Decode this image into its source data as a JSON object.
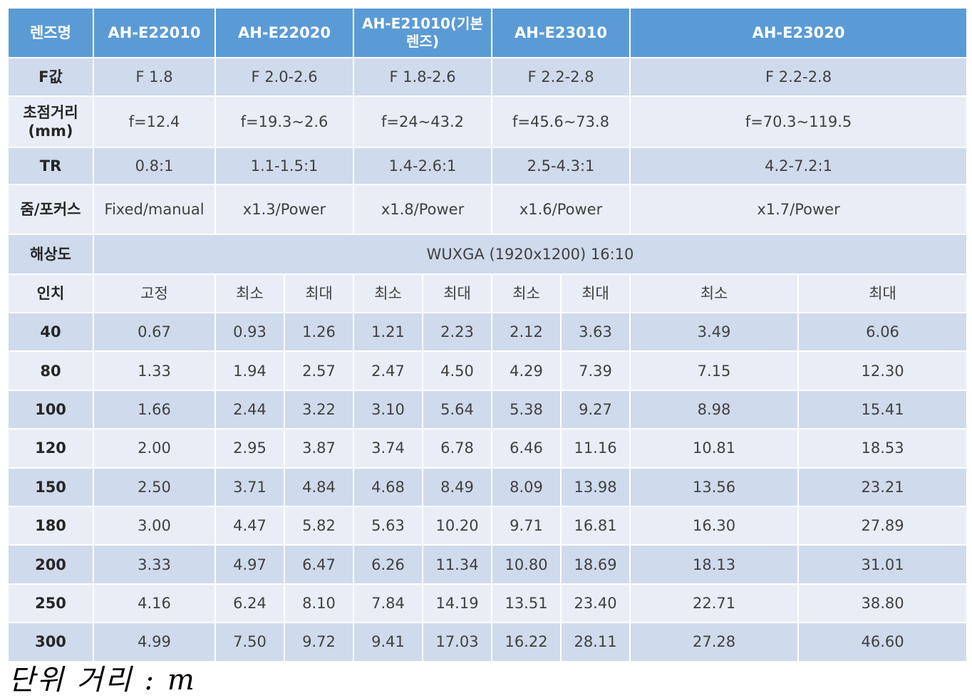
{
  "table": {
    "header": {
      "label": "렌즈명",
      "models": [
        "AH-E22010",
        "AH-E22020",
        "AH-E21010(기본렌즈)",
        "AH-E23010",
        "AH-E23020"
      ]
    },
    "specs": [
      {
        "label": "F값",
        "values": [
          "F 1.8",
          "F 2.0-2.6",
          "F 1.8-2.6",
          "F 2.2-2.8",
          "F 2.2-2.8"
        ]
      },
      {
        "label": "초점거리(mm)",
        "values": [
          "f=12.4",
          "f=19.3~2.6",
          "f=24~43.2",
          "f=45.6~73.8",
          "f=70.3~119.5"
        ]
      },
      {
        "label": "TR",
        "values": [
          "0.8:1",
          "1.1-1.5:1",
          "1.4-2.6:1",
          "2.5-4.3:1",
          "4.2-7.2:1"
        ]
      },
      {
        "label": "줌/포커스",
        "values": [
          "Fixed/manual",
          "x1.3/Power",
          "x1.8/Power",
          "x1.6/Power",
          "x1.7/Power"
        ]
      }
    ],
    "resolution": {
      "label": "해상도",
      "value": "WUXGA (1920x1200) 16:10"
    },
    "subheader": {
      "label": "인치",
      "cols": [
        "고정",
        "최소",
        "최대",
        "최소",
        "최대",
        "최소",
        "최대",
        "최소",
        "최대"
      ]
    },
    "distance_rows": [
      {
        "inch": "40",
        "values": [
          "0.67",
          "0.93",
          "1.26",
          "1.21",
          "2.23",
          "2.12",
          "3.63",
          "3.49",
          "6.06"
        ]
      },
      {
        "inch": "80",
        "values": [
          "1.33",
          "1.94",
          "2.57",
          "2.47",
          "4.50",
          "4.29",
          "7.39",
          "7.15",
          "12.30"
        ]
      },
      {
        "inch": "100",
        "values": [
          "1.66",
          "2.44",
          "3.22",
          "3.10",
          "5.64",
          "5.38",
          "9.27",
          "8.98",
          "15.41"
        ]
      },
      {
        "inch": "120",
        "values": [
          "2.00",
          "2.95",
          "3.87",
          "3.74",
          "6.78",
          "6.46",
          "11.16",
          "10.81",
          "18.53"
        ]
      },
      {
        "inch": "150",
        "values": [
          "2.50",
          "3.71",
          "4.84",
          "4.68",
          "8.49",
          "8.09",
          "13.98",
          "13.56",
          "23.21"
        ]
      },
      {
        "inch": "180",
        "values": [
          "3.00",
          "4.47",
          "5.82",
          "5.63",
          "10.20",
          "9.71",
          "16.81",
          "16.30",
          "27.89"
        ]
      },
      {
        "inch": "200",
        "values": [
          "3.33",
          "4.97",
          "6.47",
          "6.26",
          "11.34",
          "10.80",
          "18.69",
          "18.13",
          "31.01"
        ]
      },
      {
        "inch": "250",
        "values": [
          "4.16",
          "6.24",
          "8.10",
          "7.84",
          "14.19",
          "13.51",
          "23.40",
          "22.71",
          "38.80"
        ]
      },
      {
        "inch": "300",
        "values": [
          "4.99",
          "7.50",
          "9.72",
          "9.41",
          "17.03",
          "16.22",
          "28.11",
          "27.28",
          "46.60"
        ]
      }
    ]
  },
  "unit_note": "단위 거리 :  m",
  "colors": {
    "header": "#5b9bd5",
    "row_dark": "#cfdaec",
    "row_light": "#e9eef6"
  }
}
